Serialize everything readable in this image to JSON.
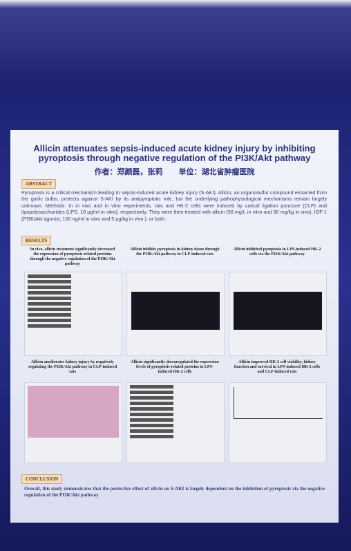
{
  "header": {
    "title": "Allicin attenuates sepsis-induced acute kidney injury by inhibiting pyroptosis through negative regulation of the PI3K/Akt pathway",
    "authors": "作者：郑颜磊，张莉",
    "affiliation": "单位：湖北省肿瘤医院"
  },
  "abstract": {
    "heading": "ABSTRACT",
    "text": "Pyroptosis is a critical mechanism leading to sepsis-induced acute kidney injury (S-AKI). Allicin, an organosulfur compound extracted from the garlic bulbs, protects against S-AKI by its antipyroptotic role, but the underlying pathophysiological mechanisms remain largely unknown. Methods: In in vivo and in vitro experiments, rats and HK-2 cells were induced by caecal ligation puncture (CLP) and lipopolysaccharides (LPS, 10 μg/ml in vitro), respectively. They were then treated with allicin (50 mg/L in vitro and 30 mg/kg in vivo), IGF-1 (PI3K/Akt agonist, 100 ng/ml in vitro and 5 μg/kg in vivo ), or both."
  },
  "results": {
    "heading": "RESULTS",
    "panels": [
      "In vivo, allicin treatment significantly decreased the expression of pyroptosis-related proteins through the negative regulation of the PI3K/Akt pathway",
      "Allicin inhibits pyroptosis in kidney tissue through the PI3K/Akt pathway in CLP-induced rats",
      "Allicin inhibited pyroptosis in LPS-induced HK-2 cells via the PI3K/Akt pathway",
      "Allicin ameliorates kidney injury by negatively regulating the PI3K/Akt pathway in CLP-induced rats",
      "Allicin significantly downregulated the expression levels of pyroptosis-related proteins in LPS-induced HK-2 cells",
      "Allicin improved HK-2 cell viability, kidney function and survival in LPS-induced HK-2 cells and CLP-induced rats"
    ]
  },
  "conclusion": {
    "heading": "CONCLUSION",
    "text": "Overall, this study demonstrates that the protective effect of allicin on S-AKI is largely dependent on the inhibition of pyroptosis via the negative regulation of the PI3K/Akt pathway"
  }
}
